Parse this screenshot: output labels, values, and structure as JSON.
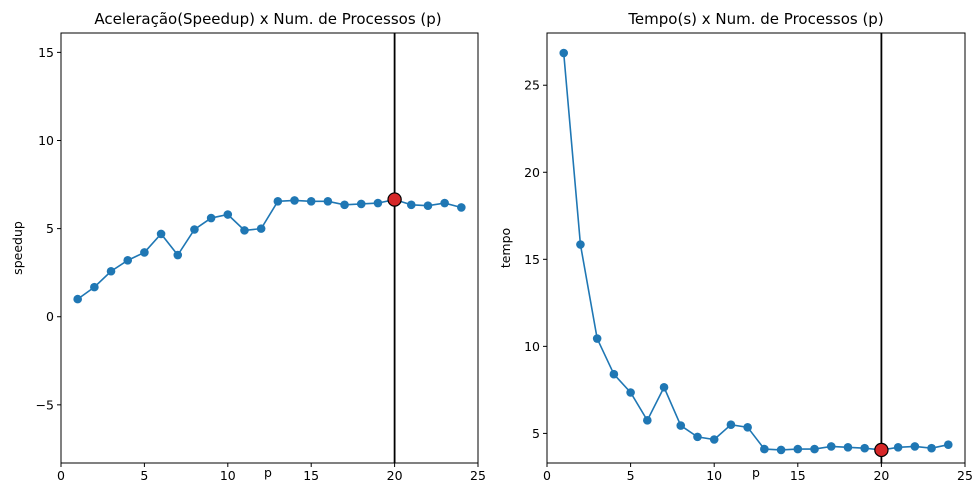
{
  "chart_data": [
    {
      "type": "line",
      "title": "Aceleração(Speedup) x Num. de Processos (p)",
      "xlabel": "p",
      "ylabel": "speedup",
      "xlim": [
        0,
        25
      ],
      "ylim": [
        -8.3,
        16.1
      ],
      "xticks": [
        0,
        5,
        10,
        15,
        20,
        25
      ],
      "yticks": [
        -5,
        0,
        5,
        10,
        15
      ],
      "xtick_labels": [
        "0",
        "5",
        "10",
        "15",
        "20",
        "25"
      ],
      "ytick_labels": [
        "−5",
        "0",
        "5",
        "10",
        "15"
      ],
      "grid": false,
      "x": [
        1,
        2,
        3,
        4,
        5,
        6,
        7,
        8,
        9,
        10,
        11,
        12,
        13,
        14,
        15,
        16,
        17,
        18,
        19,
        20,
        21,
        22,
        23,
        24
      ],
      "series": [
        {
          "values": [
            1.0,
            1.68,
            2.58,
            3.2,
            3.65,
            4.7,
            3.5,
            4.95,
            5.6,
            5.8,
            4.9,
            5.0,
            6.55,
            6.6,
            6.55,
            6.55,
            6.35,
            6.4,
            6.45,
            6.65,
            6.35,
            6.3,
            6.45,
            6.2
          ],
          "color": "#1f77b4"
        }
      ],
      "vline_x": 20,
      "highlight": {
        "x": 20,
        "y": 6.65,
        "color": "#d62728"
      }
    },
    {
      "type": "line",
      "title": "Tempo(s) x Num. de Processos (p)",
      "xlabel": "p",
      "ylabel": "tempo",
      "xlim": [
        0,
        25
      ],
      "ylim": [
        3.3,
        28.0
      ],
      "xticks": [
        0,
        5,
        10,
        15,
        20,
        25
      ],
      "yticks": [
        5,
        10,
        15,
        20,
        25
      ],
      "xtick_labels": [
        "0",
        "5",
        "10",
        "15",
        "20",
        "25"
      ],
      "ytick_labels": [
        "5",
        "10",
        "15",
        "20",
        "25"
      ],
      "grid": false,
      "x": [
        1,
        2,
        3,
        4,
        5,
        6,
        7,
        8,
        9,
        10,
        11,
        12,
        13,
        14,
        15,
        16,
        17,
        18,
        19,
        20,
        21,
        22,
        23,
        24
      ],
      "series": [
        {
          "values": [
            26.85,
            15.85,
            10.45,
            8.4,
            7.35,
            5.75,
            7.65,
            5.45,
            4.8,
            4.65,
            5.5,
            5.35,
            4.1,
            4.05,
            4.1,
            4.1,
            4.25,
            4.2,
            4.15,
            4.05,
            4.2,
            4.25,
            4.15,
            4.35
          ],
          "color": "#1f77b4"
        }
      ],
      "vline_x": 20,
      "highlight": {
        "x": 20,
        "y": 4.05,
        "color": "#d62728"
      }
    }
  ]
}
